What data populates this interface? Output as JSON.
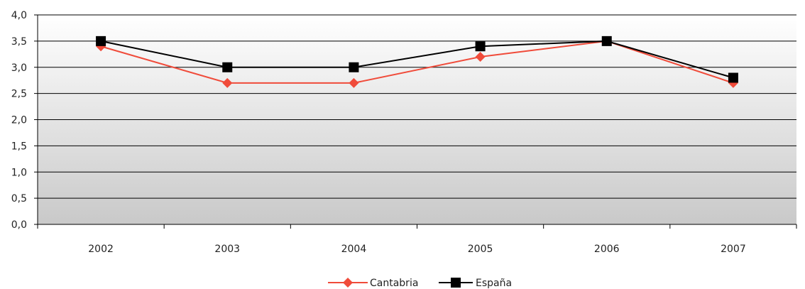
{
  "chart_data": {
    "type": "line",
    "title": "",
    "xlabel": "",
    "ylabel": "",
    "categories": [
      "2002",
      "2003",
      "2004",
      "2005",
      "2006",
      "2007"
    ],
    "ylim": [
      0,
      4
    ],
    "yticks": [
      "0,0",
      "0,5",
      "1,0",
      "1,5",
      "2,0",
      "2,5",
      "3,0",
      "3,5",
      "4,0"
    ],
    "grid": true,
    "legend_position": "bottom",
    "series": [
      {
        "name": "Cantabria",
        "values": [
          3.4,
          2.7,
          2.7,
          3.2,
          3.5,
          2.7
        ],
        "color": "#f04b3a",
        "marker": "diamond"
      },
      {
        "name": "España",
        "values": [
          3.5,
          3.0,
          3.0,
          3.4,
          3.5,
          2.8
        ],
        "color": "#000000",
        "marker": "square"
      }
    ]
  }
}
